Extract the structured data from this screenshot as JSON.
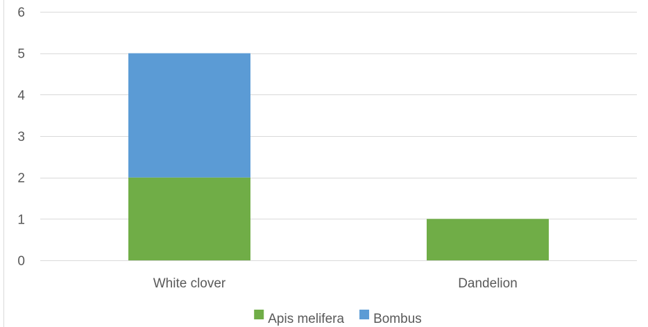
{
  "chart_data": {
    "type": "bar",
    "stacked": true,
    "categories": [
      "White clover",
      "Dandelion"
    ],
    "series": [
      {
        "name": "Apis melifera",
        "values": [
          2,
          1
        ],
        "color": "#70ad47"
      },
      {
        "name": "Bombus",
        "values": [
          3,
          0
        ],
        "color": "#5b9bd5"
      }
    ],
    "ylim": [
      0,
      6
    ],
    "yticks": [
      0,
      1,
      2,
      3,
      4,
      5,
      6
    ],
    "grid": true,
    "legend": "bottom",
    "gridline_color": "#d9d9d9",
    "text_color": "#595959"
  }
}
